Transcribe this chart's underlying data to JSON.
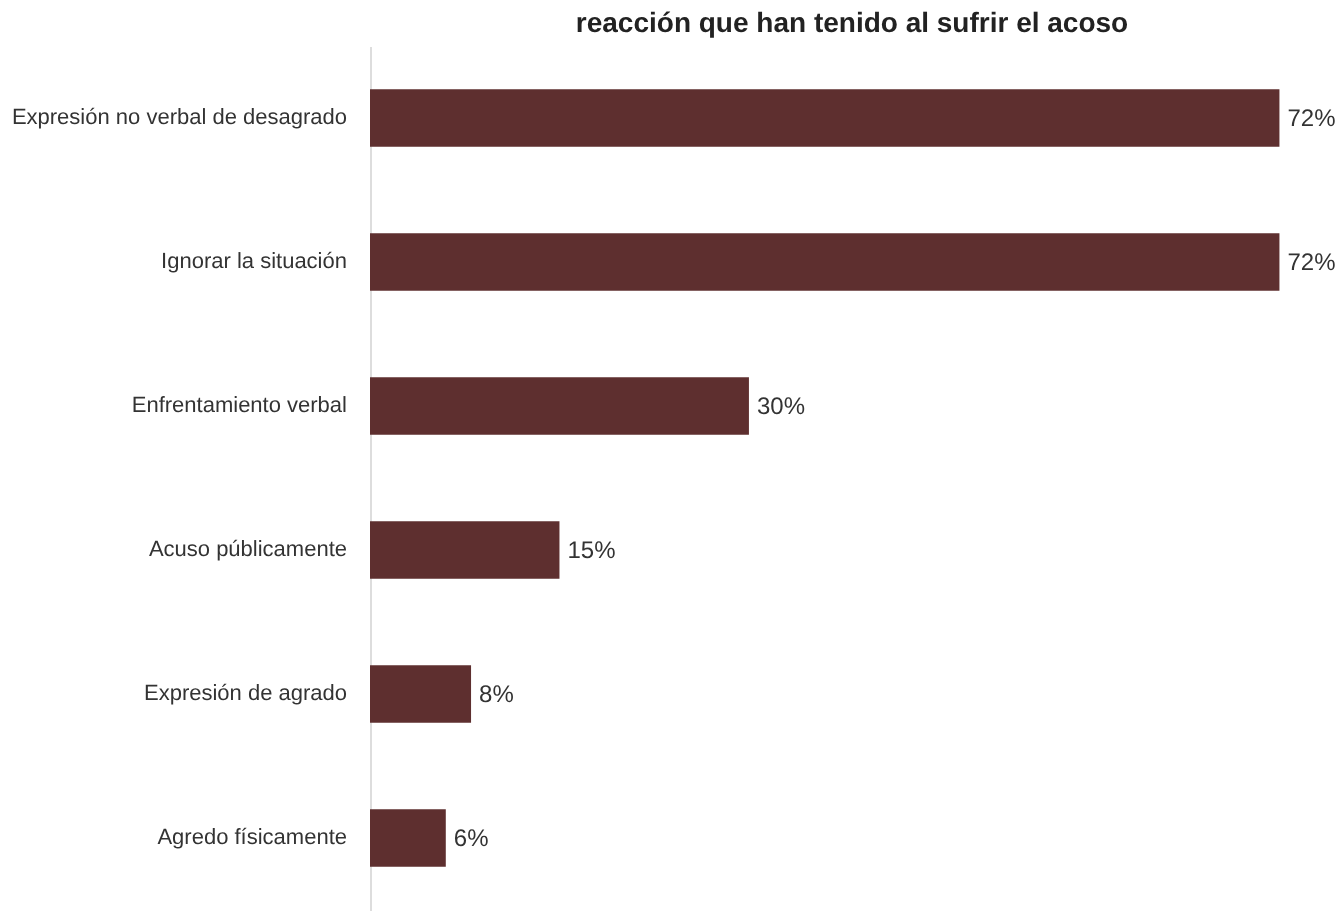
{
  "chart_data": {
    "type": "bar",
    "orientation": "horizontal",
    "title": "reacción que han tenido al sufrir el acoso",
    "categories": [
      "Expresión no verbal de desagrado",
      "Ignorar la situación",
      "Enfrentamiento verbal",
      "Acuso públicamente",
      "Expresión de agrado",
      "Agredo físicamente"
    ],
    "values": [
      72,
      72,
      30,
      15,
      8,
      6
    ],
    "color": "#5e2f2f",
    "data_labels": true,
    "value_labels": [
      "72%",
      "72%",
      "30%",
      "15%",
      "8%",
      "6%"
    ],
    "tick_labels": "y"
  }
}
